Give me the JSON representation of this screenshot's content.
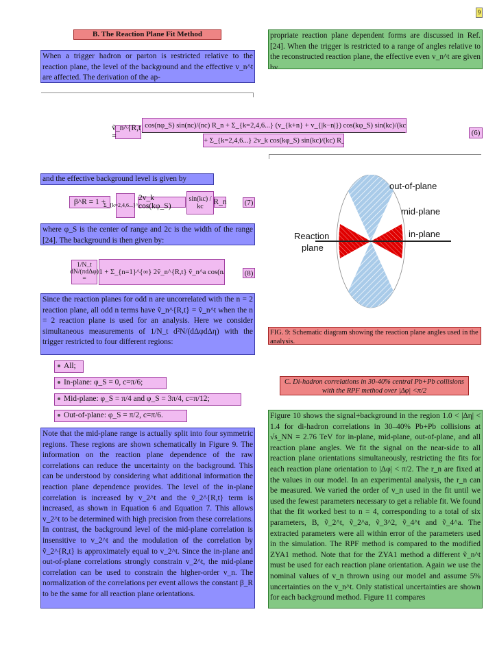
{
  "page_marker": "9",
  "section_b": {
    "heading": "B.   The Reaction Plane Fit Method",
    "intro": "When a trigger hadron or parton is restricted relative to the reaction plane, the level of the background and the effective v_n^t are affected. The derivation of the ap-",
    "continued": "propriate reaction plane dependent forms are discussed in Ref. [24]. When the trigger is restricted to a range of angles relative to the reconstructed reaction plane, the effective even v_n^t are given by"
  },
  "eq6": {
    "lhs": "ṽ_n^{R,t} =",
    "numerator": "v_n + cos(nφ_S) sin(nc)/(nc) R_n + Σ_{k=2,4,6...} (v_{k+n} + v_{|k−n|}) cos(kφ_S) sin(kc)/(kc) R_n",
    "denominator": "1 + Σ_{k=2,4,6...} 2v_k cos(kφ_S) sin(kc)/(kc) R_n",
    "number": "(6)"
  },
  "bg_level_text": "and the effective background level is given by",
  "eq7": {
    "lhs": "β^R = 1 +",
    "sum": "Σ_{k=2,4,6...}^{∞}",
    "body": "2v_k cos(kφ_S)",
    "frac": "sin(kc) / kc",
    "rn": "R_n",
    "number": "(7)"
  },
  "where_text": "where φ_S is the center of range and 2c is the width of the range [24]. The background is then given by:",
  "eq8": {
    "lhs": "1/N_t dN/(πdΔφ) =",
    "body": "β^R(1 + Σ_{n=1}^{∞} 2ṽ_n^{R,t} ṽ_n^a cos(nΔφ)),",
    "number": "(8)"
  },
  "since_text": "Since the reaction planes for odd n are uncorrelated with the n = 2 reaction plane, all odd n terms have ṽ_n^{R,t} = ṽ_n^t when the n = 2 reaction plane is used for an analysis. Here we consider simultaneous measurements of 1/N_t d²N/(dΔφdΔη) with the trigger restricted to four different regions:",
  "regions": [
    "All;",
    "In-plane: φ_S = 0, c=π/6;",
    "Mid-plane: φ_S = π/4 and φ_S = 3π/4, c=π/12;",
    "Out-of-plane: φ_S = π/2, c=π/6."
  ],
  "note_text": "Note that the mid-plane range is actually split into four symmetric regions. These regions are shown schematically in Figure 9. The information on the reaction plane dependence of the raw correlations can reduce the uncertainty on the background. This can be understood by considering what additional information the reaction plane dependence provides. The level of the in-plane correlation is increased by v_2^t and the ṽ_2^{R,t} term is increased, as shown in Equation 6 and Equation 7. This allows v_2^t to be determined with high precision from these correlations. In contrast, the background level of the mid-plane correlation is insensitive to v_2^t and the modulation of the correlation by ṽ_2^{R,t} is approximately equal to v_2^t. Since the in-plane and out-of-plane correlations strongly constrain v_2^t, the mid-plane correlation can be used to constrain the higher-order v_n. The normalization of the correlations per event allows the constant β_R to be the same for all reaction plane orientations.",
  "figure9": {
    "label_out": "out-of-plane",
    "label_mid": "mid-plane",
    "label_in": "in-plane",
    "label_reaction": "Reaction",
    "label_plane": "plane",
    "caption": "FIG. 9: Schematic diagram showing the reaction plane angles used in the analysis.",
    "colors": {
      "out": "#a9cbe9",
      "in": "#e00000",
      "hatch": "#ffffff"
    }
  },
  "section_c": {
    "heading": "C.   Di-hadron correlations in 30-40% central Pb+Pb collisions with the RPF method over |Δφ| <π/2",
    "text": "Figure 10 shows the signal+background in the region 1.0 < |Δη| < 1.4 for di-hadron correlations in 30–40% Pb+Pb collisions at √s_NN = 2.76 TeV for in-plane, mid-plane, out-of-plane, and all reaction plane angles. We fit the signal on the near-side to all reaction plane orientations simultaneously, restricting the fits for each reaction plane orientation to |Δφ| < π/2. The r_n are fixed at the values in our model. In an experimental analysis, the r_n can be measured. We varied the order of v_n used in the fit until we used the fewest parameters necessary to get a reliable fit. We found that the fit worked best to n = 4, corresponding to a total of six parameters, B, ṽ_2^t, ṽ_2^a, ṽ_3^2, ṽ_4^t and ṽ_4^a. The extracted parameters were all within error of the parameters used in the simulation. The RPF method is compared to the modified ZYA1 method. Note that for the ZYA1 method a different ṽ_n^t must be used for each reaction plane orientation. Again we use the nominal values of v_n thrown using our model and assume 5% uncertainties on the v_n^t. Only statistical uncertainties are shown for each background method. Figure 11 compares"
  }
}
